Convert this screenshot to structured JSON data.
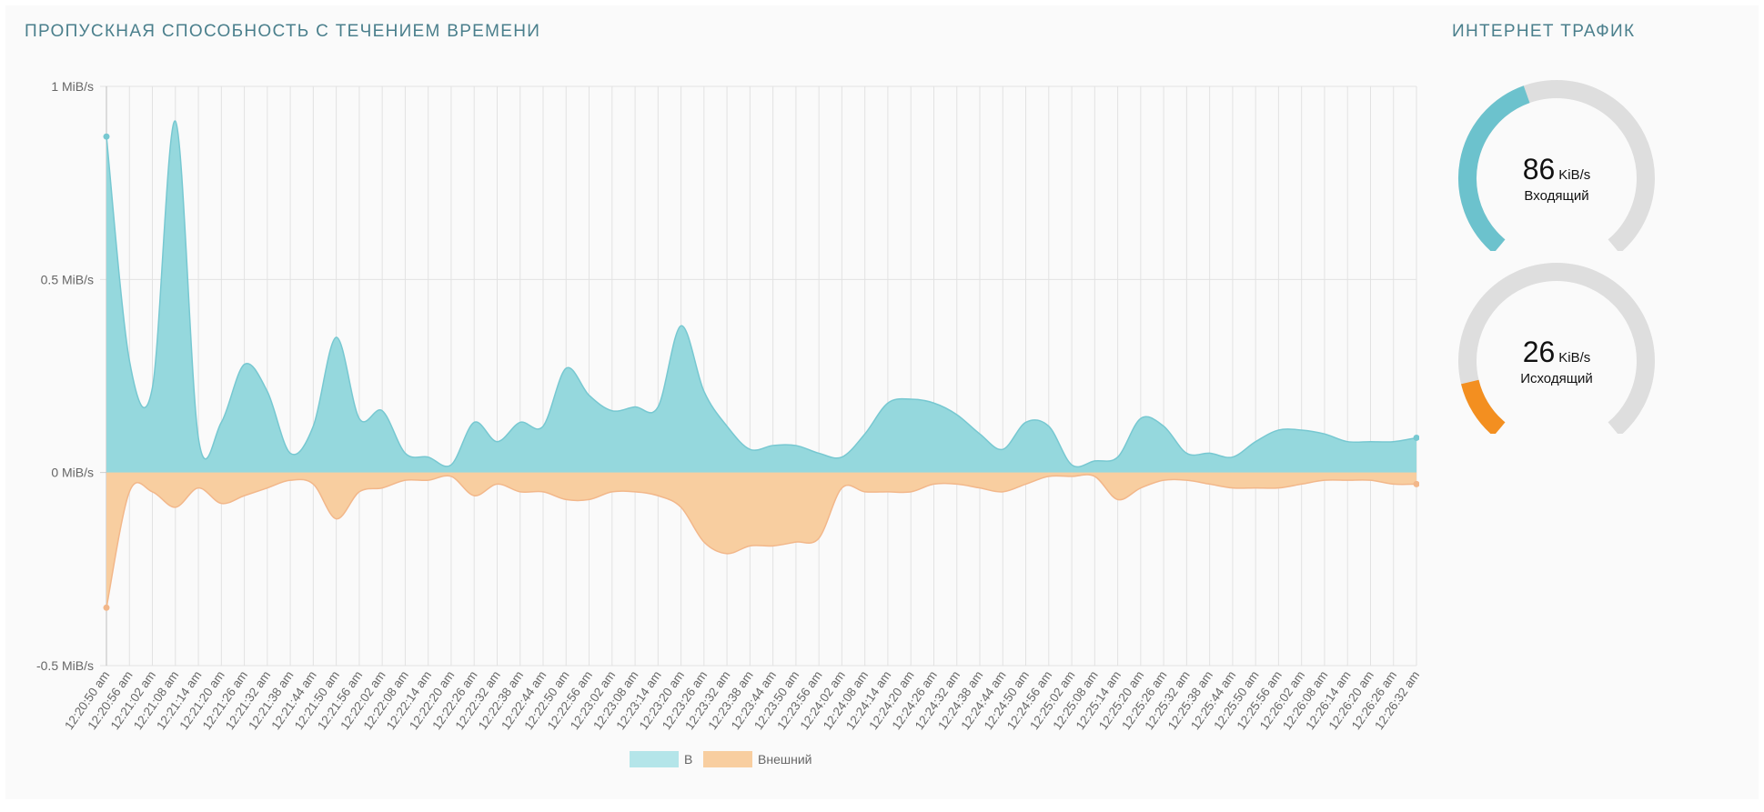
{
  "chart_title": "ПРОПУСКНАЯ СПОСОБНОСТЬ С ТЕЧЕНИЕМ ВРЕМЕНИ",
  "traffic_title": "ИНТЕРНЕТ ТРАФИК",
  "colors": {
    "in_fill": "#95d8dd",
    "in_line": "#77c8d1",
    "out_fill": "#f8ceA0",
    "out_line": "#f2b78a",
    "gauge_in": "#6cc2cd",
    "gauge_out": "#f38f20",
    "gauge_track": "#dedede",
    "grid": "#e2e2e2",
    "title": "#4a7f8c"
  },
  "chart_data": {
    "type": "area",
    "title": "ПРОПУСКНАЯ СПОСОБНОСТЬ С ТЕЧЕНИЕМ ВРЕМЕНИ",
    "ylim": [
      -0.5,
      1
    ],
    "y_ticks": [
      {
        "value": 1,
        "label": "1 MiB/s"
      },
      {
        "value": 0.5,
        "label": "0.5 MiB/s"
      },
      {
        "value": 0,
        "label": "0 MiB/s"
      },
      {
        "value": -0.5,
        "label": "-0.5 MiB/s"
      }
    ],
    "x": [
      "12:20:50 am",
      "12:20:56 am",
      "12:21:02 am",
      "12:21:08 am",
      "12:21:14 am",
      "12:21:20 am",
      "12:21:26 am",
      "12:21:32 am",
      "12:21:38 am",
      "12:21:44 am",
      "12:21:50 am",
      "12:21:56 am",
      "12:22:02 am",
      "12:22:08 am",
      "12:22:14 am",
      "12:22:20 am",
      "12:22:26 am",
      "12:22:32 am",
      "12:22:38 am",
      "12:22:44 am",
      "12:22:50 am",
      "12:22:56 am",
      "12:23:02 am",
      "12:23:08 am",
      "12:23:14 am",
      "12:23:20 am",
      "12:23:26 am",
      "12:23:32 am",
      "12:23:38 am",
      "12:23:44 am",
      "12:23:50 am",
      "12:23:56 am",
      "12:24:02 am",
      "12:24:08 am",
      "12:24:14 am",
      "12:24:20 am",
      "12:24:26 am",
      "12:24:32 am",
      "12:24:38 am",
      "12:24:44 am",
      "12:24:50 am",
      "12:24:56 am",
      "12:25:02 am",
      "12:25:08 am",
      "12:25:14 am",
      "12:25:20 am",
      "12:25:26 am",
      "12:25:32 am",
      "12:25:38 am",
      "12:25:44 am",
      "12:25:50 am",
      "12:25:56 am",
      "12:26:02 am",
      "12:26:08 am",
      "12:26:14 am",
      "12:26:20 am",
      "12:26:26 am",
      "12:26:32 am"
    ],
    "series": [
      {
        "name": "В",
        "values": [
          0.87,
          0.29,
          0.22,
          0.91,
          0.09,
          0.13,
          0.28,
          0.21,
          0.05,
          0.12,
          0.35,
          0.14,
          0.16,
          0.05,
          0.04,
          0.02,
          0.13,
          0.08,
          0.13,
          0.12,
          0.27,
          0.2,
          0.16,
          0.17,
          0.17,
          0.38,
          0.21,
          0.12,
          0.06,
          0.07,
          0.07,
          0.05,
          0.04,
          0.1,
          0.18,
          0.19,
          0.18,
          0.15,
          0.1,
          0.06,
          0.13,
          0.12,
          0.02,
          0.03,
          0.04,
          0.14,
          0.12,
          0.05,
          0.05,
          0.04,
          0.08,
          0.11,
          0.11,
          0.1,
          0.08,
          0.08,
          0.08,
          0.09
        ]
      },
      {
        "name": "Внешний",
        "values": [
          -0.35,
          -0.05,
          -0.05,
          -0.09,
          -0.04,
          -0.08,
          -0.06,
          -0.04,
          -0.02,
          -0.03,
          -0.12,
          -0.05,
          -0.04,
          -0.02,
          -0.02,
          -0.01,
          -0.06,
          -0.03,
          -0.05,
          -0.05,
          -0.07,
          -0.07,
          -0.05,
          -0.05,
          -0.06,
          -0.09,
          -0.18,
          -0.21,
          -0.19,
          -0.19,
          -0.18,
          -0.17,
          -0.04,
          -0.05,
          -0.05,
          -0.05,
          -0.03,
          -0.03,
          -0.04,
          -0.05,
          -0.03,
          -0.01,
          -0.01,
          -0.01,
          -0.07,
          -0.04,
          -0.02,
          -0.02,
          -0.03,
          -0.04,
          -0.04,
          -0.04,
          -0.03,
          -0.02,
          -0.02,
          -0.02,
          -0.03,
          -0.03
        ]
      }
    ],
    "legend": [
      {
        "name": "В",
        "color": "#b4e5e9"
      },
      {
        "name": "Внешний",
        "color": "#f8ceA0"
      }
    ],
    "legend_position": "bottom-center"
  },
  "gauges": {
    "incoming": {
      "value": "86",
      "unit": "KiB/s",
      "label": "Входящий",
      "fraction": 0.43
    },
    "outgoing": {
      "value": "26",
      "unit": "KiB/s",
      "label": "Исходящий",
      "fraction": 0.13
    }
  }
}
